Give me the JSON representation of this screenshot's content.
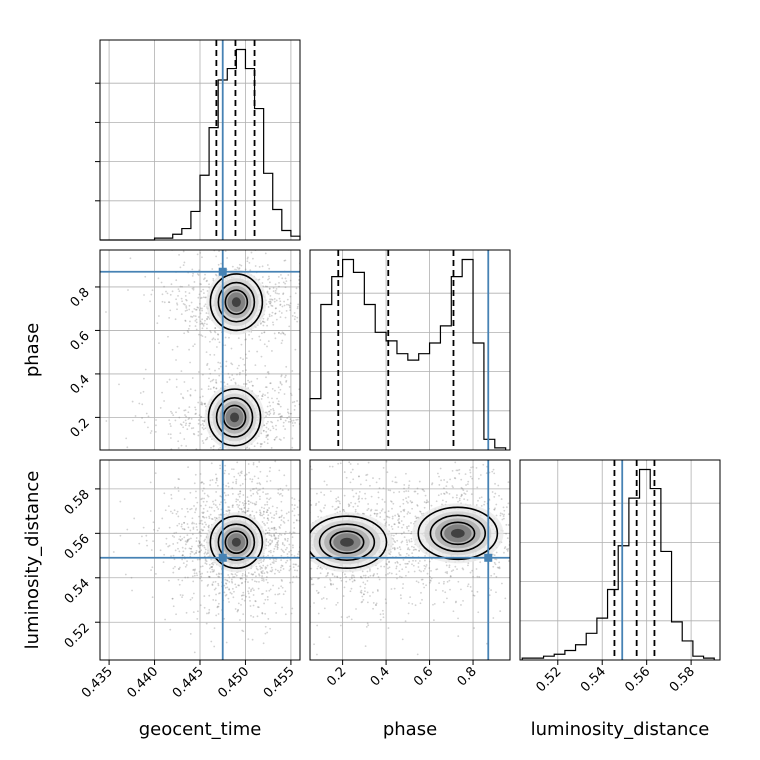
{
  "chart_data": {
    "type": "corner",
    "parameters": [
      "geocent_time",
      "phase",
      "luminosity_distance"
    ],
    "truth": {
      "geocent_time": 0.4475,
      "phase": 0.87,
      "luminosity_distance": 0.549
    },
    "colors": {
      "truth": "#4682b4",
      "hist": "#000000",
      "grid": "#b0b0b0",
      "points": "#7f7f7f"
    },
    "grid": true,
    "panels": {
      "geocent_time_hist": {
        "xlim": [
          0.434,
          0.456
        ],
        "quantiles": [
          0.4468,
          0.4489,
          0.451
        ],
        "bins": [
          0.434,
          0.435,
          0.436,
          0.437,
          0.438,
          0.439,
          0.44,
          0.441,
          0.442,
          0.443,
          0.444,
          0.445,
          0.446,
          0.447,
          0.448,
          0.449,
          0.45,
          0.451,
          0.452,
          0.453,
          0.454,
          0.455,
          0.456
        ],
        "counts": [
          0,
          0,
          0,
          0,
          0,
          0,
          1,
          1,
          3,
          6,
          15,
          34,
          59,
          84,
          90,
          100,
          90,
          69,
          35,
          16,
          5,
          2
        ]
      },
      "phase_hist": {
        "xlim": [
          0.05,
          0.97
        ],
        "quantiles": [
          0.18,
          0.41,
          0.71
        ],
        "bins": [
          0.05,
          0.1,
          0.15,
          0.2,
          0.25,
          0.3,
          0.35,
          0.4,
          0.45,
          0.5,
          0.55,
          0.6,
          0.65,
          0.7,
          0.75,
          0.8,
          0.85,
          0.9,
          0.95
        ],
        "counts": [
          24,
          68,
          81,
          89,
          83,
          68,
          55,
          51,
          45,
          42,
          45,
          50,
          58,
          81,
          89,
          50,
          5,
          1
        ]
      },
      "luminosity_distance_hist": {
        "xlim": [
          0.503,
          0.593
        ],
        "quantiles": [
          0.5455,
          0.5555,
          0.5635
        ],
        "bins": [
          0.504,
          0.5088,
          0.5136,
          0.5184,
          0.5232,
          0.528,
          0.5328,
          0.5376,
          0.5424,
          0.5472,
          0.552,
          0.5568,
          0.5616,
          0.5664,
          0.5712,
          0.576,
          0.5808,
          0.5856,
          0.5904
        ],
        "counts": [
          1,
          1,
          2,
          3,
          5,
          8,
          14,
          22,
          37,
          60,
          85,
          100,
          90,
          57,
          20,
          10,
          2,
          1
        ]
      },
      "phase_vs_geocent_time": {
        "xlim": [
          0.434,
          0.456
        ],
        "ylim": [
          0.05,
          0.97
        ],
        "modes": [
          {
            "x": 0.449,
            "y": 0.73
          },
          {
            "x": 0.4488,
            "y": 0.2
          }
        ]
      },
      "luminosity_distance_vs_geocent_time": {
        "xlim": [
          0.434,
          0.456
        ],
        "ylim": [
          0.503,
          0.593
        ],
        "modes": [
          {
            "x": 0.449,
            "y": 0.556
          }
        ]
      },
      "luminosity_distance_vs_phase": {
        "xlim": [
          0.05,
          0.97
        ],
        "ylim": [
          0.503,
          0.593
        ],
        "modes": [
          {
            "x": 0.22,
            "y": 0.556
          },
          {
            "x": 0.73,
            "y": 0.56
          }
        ]
      }
    },
    "ticks": {
      "geocent_time": [
        "0.435",
        "0.440",
        "0.445",
        "0.450",
        "0.455"
      ],
      "phase": [
        "0.2",
        "0.4",
        "0.6",
        "0.8"
      ],
      "luminosity_distance": [
        "0.52",
        "0.54",
        "0.56",
        "0.58"
      ]
    },
    "axis_labels": {
      "x": [
        "geocent_time",
        "phase",
        "luminosity_distance"
      ],
      "y": [
        "phase",
        "luminosity_distance"
      ]
    }
  }
}
